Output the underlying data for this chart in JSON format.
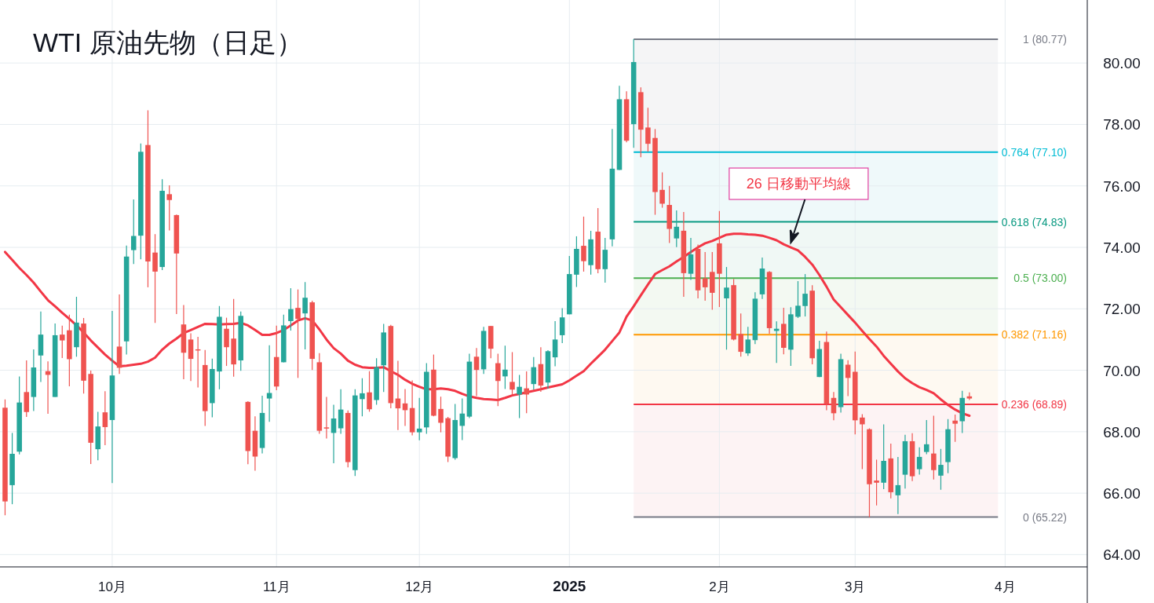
{
  "chart_data": {
    "type": "candlestick",
    "title": "WTI 原油先物（日足）",
    "categories": [
      null,
      null,
      null,
      null,
      null,
      null,
      null,
      null,
      null,
      null,
      null,
      null,
      null,
      null,
      null,
      "10月",
      null,
      null,
      null,
      null,
      null,
      null,
      null,
      null,
      null,
      null,
      null,
      null,
      null,
      null,
      null,
      null,
      null,
      null,
      null,
      null,
      null,
      null,
      "11月",
      null,
      null,
      null,
      null,
      null,
      null,
      null,
      null,
      null,
      null,
      null,
      null,
      null,
      null,
      null,
      null,
      null,
      null,
      null,
      "12月",
      null,
      null,
      null,
      null,
      null,
      null,
      null,
      null,
      null,
      null,
      null,
      null,
      null,
      null,
      null,
      null,
      null,
      null,
      null,
      null,
      "2025",
      null,
      null,
      null,
      null,
      null,
      null,
      null,
      null,
      null,
      null,
      null,
      null,
      null,
      null,
      null,
      null,
      null,
      null,
      null,
      null,
      "2月",
      null,
      null,
      null,
      null,
      null,
      null,
      null,
      null,
      null,
      null,
      null,
      null,
      null,
      null,
      null,
      null,
      null,
      null,
      "3月",
      null,
      null,
      null,
      null,
      null,
      null,
      null,
      null,
      null,
      null,
      null,
      null,
      null,
      null,
      null,
      null,
      null,
      null,
      null,
      null,
      "4月",
      null,
      null,
      null,
      null,
      null,
      null,
      null,
      null,
      null,
      null,
      null
    ],
    "ylim": [
      63.6,
      82.05
    ],
    "yticks": [
      {
        "value": 64,
        "label": "64.00"
      },
      {
        "value": 66,
        "label": "66.00"
      },
      {
        "value": 68,
        "label": "68.00"
      },
      {
        "value": 70,
        "label": "70.00"
      },
      {
        "value": 72,
        "label": "72.00"
      },
      {
        "value": 74,
        "label": "74.00"
      },
      {
        "value": 76,
        "label": "76.00"
      },
      {
        "value": 78,
        "label": "78.00"
      },
      {
        "value": 80,
        "label": "80.00"
      }
    ],
    "grid": true,
    "series": [
      {
        "type": "candlestick",
        "colors": [
          "#ef5350",
          "#26a69a",
          "#26a69a",
          "#ef5350",
          "#26a69a",
          "#26a69a",
          "#ef5350",
          "#26a69a",
          "#ef5350",
          "#ef5350",
          "#26a69a",
          "#ef5350",
          "#ef5350",
          "#26a69a",
          "#ef5350",
          "#26a69a",
          "#ef5350",
          "#26a69a",
          "#26a69a",
          "#26a69a",
          "#ef5350",
          "#ef5350",
          "#26a69a",
          "#ef5350",
          "#ef5350",
          "#ef5350",
          "#ef5350",
          "#ef5350",
          "#ef5350",
          "#26a69a",
          "#26a69a",
          "#ef5350",
          "#ef5350",
          "#26a69a",
          "#ef5350",
          "#ef5350",
          "#26a69a",
          "#26a69a",
          "#ef5350",
          "#26a69a",
          "#26a69a",
          "#ef5350",
          "#26a69a",
          "#ef5350",
          "#ef5350",
          "#ef5350",
          "#26a69a",
          "#26a69a",
          "#ef5350",
          "#26a69a",
          "#26a69a",
          "#ef5350",
          "#26a69a",
          "#26a69a",
          "#ef5350",
          "#ef5350",
          "#ef5350",
          "#ef5350",
          "#26a69a",
          "#26a69a",
          "#ef5350",
          "#ef5350",
          "#ef5350",
          "#26a69a",
          "#26a69a",
          "#26a69a",
          "#ef5350",
          "#26a69a",
          "#ef5350",
          "#ef5350",
          "#26a69a",
          "#ef5350",
          "#26a69a",
          "#ef5350",
          "#26a69a",
          "#ef5350",
          "#26a69a",
          "#26a69a",
          "#26a69a",
          "#26a69a",
          "#26a69a",
          "#ef5350",
          "#26a69a",
          "#ef5350",
          "#26a69a",
          "#26a69a",
          "#26a69a",
          "#ef5350",
          "#26a69a",
          "#ef5350",
          "#ef5350",
          "#ef5350",
          "#ef5350",
          "#ef5350",
          "#26a69a",
          "#ef5350",
          "#26a69a",
          "#ef5350",
          "#ef5350",
          "#ef5350",
          "#ef5350",
          "#26a69a",
          "#ef5350",
          "#ef5350",
          "#26a69a",
          "#26a69a",
          "#26a69a",
          "#ef5350",
          "#26a69a",
          "#ef5350",
          "#26a69a",
          "#26a69a",
          "#26a69a",
          "#ef5350",
          "#26a69a",
          "#ef5350",
          "#ef5350",
          "#26a69a",
          "#ef5350",
          "#ef5350",
          "#ef5350",
          "#ef5350",
          "#ef5350",
          "#26a69a",
          "#ef5350",
          "#26a69a",
          "#26a69a",
          "#ef5350",
          "#26a69a",
          "#26a69a",
          "#ef5350",
          "#26a69a",
          "#26a69a",
          "#ef5350",
          "#26a69a",
          "#ef5350",
          null,
          null,
          null,
          null,
          null,
          null,
          null,
          null,
          null,
          null,
          null,
          null,
          null,
          null,
          null,
          null
        ],
        "ohlc": [
          [
            68.78,
            69.05,
            65.28,
            65.73
          ],
          [
            66.26,
            67.96,
            65.64,
            67.28
          ],
          [
            67.35,
            69.8,
            67.26,
            68.95
          ],
          [
            69.29,
            70.32,
            68.48,
            68.64
          ],
          [
            69.13,
            70.68,
            68.67,
            70.09
          ],
          [
            70.48,
            71.91,
            69.62,
            71.16
          ],
          [
            69.97,
            70.29,
            68.58,
            69.85
          ],
          [
            69.13,
            71.52,
            69.13,
            71.14
          ],
          [
            71.16,
            71.45,
            70.4,
            70.97
          ],
          [
            71.3,
            71.81,
            69.48,
            70.36
          ],
          [
            70.75,
            72.39,
            70.44,
            71.55
          ],
          [
            71.52,
            71.7,
            69.24,
            69.66
          ],
          [
            69.88,
            69.99,
            66.95,
            67.64
          ],
          [
            67.43,
            68.65,
            67.07,
            68.17
          ],
          [
            68.63,
            69.32,
            67.56,
            68.15
          ],
          [
            68.38,
            71.93,
            66.33,
            69.83
          ],
          [
            70.77,
            72.47,
            69.88,
            70.08
          ],
          [
            70.94,
            74.06,
            70.51,
            73.7
          ],
          [
            73.91,
            75.56,
            73.46,
            74.37
          ],
          [
            74.38,
            77.38,
            73.61,
            77.11
          ],
          [
            77.33,
            78.46,
            72.7,
            73.54
          ],
          [
            73.83,
            74.43,
            71.54,
            73.21
          ],
          [
            73.36,
            76.22,
            73.26,
            75.84
          ],
          [
            75.73,
            76.02,
            74.55,
            75.54
          ],
          [
            75.05,
            75.07,
            71.83,
            73.8
          ],
          [
            71.49,
            72.12,
            69.71,
            70.57
          ],
          [
            71.0,
            71.2,
            69.65,
            70.37
          ],
          [
            70.68,
            71.09,
            69.44,
            70.67
          ],
          [
            70.17,
            70.66,
            68.19,
            68.67
          ],
          [
            68.93,
            70.38,
            68.47,
            70.04
          ],
          [
            69.96,
            72.09,
            69.38,
            71.74
          ],
          [
            71.35,
            71.71,
            70.14,
            70.75
          ],
          [
            71.03,
            72.32,
            69.79,
            70.19
          ],
          [
            70.32,
            71.91,
            69.98,
            71.77
          ],
          [
            68.97,
            68.99,
            66.94,
            67.37
          ],
          [
            68.03,
            68.5,
            66.73,
            67.19
          ],
          [
            67.47,
            69.17,
            67.29,
            68.61
          ],
          [
            69.08,
            70.81,
            68.32,
            69.26
          ],
          [
            70.43,
            71.45,
            69.35,
            69.47
          ],
          [
            70.26,
            71.81,
            70.26,
            71.46
          ],
          [
            71.6,
            72.67,
            71.29,
            71.99
          ],
          [
            72.03,
            72.63,
            69.75,
            71.67
          ],
          [
            71.85,
            72.87,
            70.68,
            72.36
          ],
          [
            72.21,
            72.26,
            70.01,
            70.37
          ],
          [
            70.26,
            70.56,
            67.93,
            68.03
          ],
          [
            68.14,
            69.13,
            67.78,
            68.12
          ],
          [
            67.96,
            68.88,
            66.97,
            68.43
          ],
          [
            68.11,
            69.38,
            67.93,
            68.72
          ],
          [
            68.61,
            68.69,
            66.84,
            67.01
          ],
          [
            66.75,
            69.38,
            66.56,
            69.18
          ],
          [
            69.06,
            69.74,
            68.5,
            69.25
          ],
          [
            69.28,
            69.97,
            68.65,
            68.73
          ],
          [
            69.03,
            70.39,
            68.88,
            70.1
          ],
          [
            70.16,
            71.51,
            69.29,
            71.23
          ],
          [
            71.44,
            71.48,
            68.76,
            68.93
          ],
          [
            69.08,
            70.31,
            68.05,
            68.76
          ],
          [
            68.92,
            69.39,
            68.19,
            68.7
          ],
          [
            68.77,
            69.67,
            67.88,
            67.98
          ],
          [
            67.98,
            69.1,
            67.72,
            68.1
          ],
          [
            68.14,
            70.23,
            67.93,
            69.95
          ],
          [
            70.02,
            70.51,
            68.5,
            68.52
          ],
          [
            68.74,
            69.14,
            67.98,
            68.29
          ],
          [
            68.44,
            68.48,
            67.01,
            67.19
          ],
          [
            67.14,
            68.9,
            67.09,
            68.38
          ],
          [
            68.19,
            69.08,
            67.73,
            68.59
          ],
          [
            68.49,
            70.54,
            68.44,
            70.28
          ],
          [
            70.44,
            70.72,
            69.16,
            70.01
          ],
          [
            70.03,
            71.41,
            69.88,
            71.28
          ],
          [
            71.44,
            71.44,
            70.39,
            70.7
          ],
          [
            70.23,
            70.54,
            68.83,
            69.65
          ],
          [
            69.8,
            70.8,
            69.39,
            70.02
          ],
          [
            69.62,
            70.59,
            69.19,
            69.37
          ],
          [
            69.21,
            69.85,
            68.44,
            69.46
          ],
          [
            69.41,
            69.96,
            68.6,
            69.21
          ],
          [
            69.55,
            70.43,
            69.37,
            70.1
          ],
          [
            70.2,
            70.75,
            69.3,
            69.5
          ],
          [
            69.6,
            70.65,
            69.4,
            70.62
          ],
          [
            70.42,
            71.6,
            70.13,
            71.0
          ],
          [
            71.14,
            72.02,
            70.88,
            71.72
          ],
          [
            71.82,
            73.72,
            71.82,
            73.13
          ],
          [
            73.11,
            74.36,
            72.71,
            73.95
          ],
          [
            74.05,
            75.0,
            73.21,
            73.55
          ],
          [
            73.42,
            74.54,
            73.11,
            74.26
          ],
          [
            74.51,
            75.28,
            73.16,
            73.29
          ],
          [
            73.29,
            74.31,
            72.85,
            73.92
          ],
          [
            74.26,
            77.85,
            74.03,
            76.56
          ],
          [
            76.52,
            79.26,
            76.52,
            78.82
          ],
          [
            78.82,
            79.08,
            77.42,
            77.47
          ],
          [
            78.01,
            80.77,
            77.24,
            80.03
          ],
          [
            79.05,
            79.21,
            76.93,
            77.83
          ],
          [
            77.9,
            78.54,
            77.11,
            77.37
          ],
          [
            77.56,
            77.85,
            75.06,
            75.8
          ],
          [
            75.87,
            76.44,
            75.29,
            75.42
          ],
          [
            75.38,
            76.0,
            74.14,
            74.6
          ],
          [
            74.29,
            75.2,
            74.01,
            74.67
          ],
          [
            74.54,
            75.15,
            72.39,
            73.16
          ],
          [
            73.14,
            74.31,
            72.94,
            73.77
          ],
          [
            73.95,
            74.09,
            72.34,
            72.6
          ],
          [
            72.99,
            73.85,
            72.26,
            72.7
          ],
          [
            73.2,
            73.85,
            71.97,
            72.52
          ],
          [
            74.13,
            75.18,
            72.06,
            73.14
          ],
          [
            72.34,
            73.36,
            70.67,
            72.69
          ],
          [
            72.77,
            72.97,
            70.97,
            71.0
          ],
          [
            71.18,
            71.85,
            70.44,
            70.6
          ],
          [
            70.55,
            71.41,
            70.47,
            71.0
          ],
          [
            70.98,
            72.54,
            70.85,
            72.33
          ],
          [
            72.47,
            73.67,
            72.32,
            73.31
          ],
          [
            73.2,
            73.23,
            71.19,
            71.37
          ],
          [
            71.28,
            71.59,
            70.24,
            71.35
          ],
          [
            71.51,
            72.03,
            70.52,
            70.73
          ],
          [
            70.67,
            72.05,
            70.14,
            71.82
          ],
          [
            71.74,
            72.9,
            71.7,
            72.1
          ],
          [
            72.09,
            73.13,
            71.75,
            72.49
          ],
          [
            72.59,
            72.77,
            70.19,
            70.39
          ],
          [
            69.78,
            70.96,
            69.78,
            70.69
          ],
          [
            70.92,
            71.26,
            68.7,
            68.91
          ],
          [
            69.1,
            69.29,
            68.37,
            68.6
          ],
          [
            68.8,
            70.54,
            68.62,
            70.36
          ],
          [
            70.18,
            70.33,
            69.16,
            69.75
          ],
          [
            69.95,
            70.61,
            67.91,
            68.37
          ],
          [
            68.46,
            68.57,
            66.78,
            68.24
          ],
          [
            68.08,
            68.11,
            65.22,
            66.29
          ],
          [
            66.41,
            67.09,
            65.6,
            66.34
          ],
          [
            66.34,
            68.24,
            66.13,
            67.05
          ],
          [
            67.13,
            67.61,
            65.83,
            66.03
          ],
          [
            65.93,
            67.18,
            65.32,
            66.26
          ],
          [
            66.6,
            67.9,
            66.15,
            67.69
          ],
          [
            67.69,
            67.95,
            66.39,
            66.55
          ],
          [
            66.78,
            67.49,
            66.6,
            67.18
          ],
          [
            67.34,
            68.38,
            67.27,
            67.59
          ],
          [
            67.29,
            68.52,
            66.44,
            66.75
          ],
          [
            66.57,
            67.44,
            66.11,
            66.92
          ],
          [
            67.01,
            68.41,
            66.65,
            68.08
          ],
          [
            68.36,
            68.56,
            67.67,
            68.26
          ],
          [
            68.34,
            69.33,
            67.96,
            69.1
          ],
          [
            69.15,
            69.28,
            69.03,
            69.08
          ],
          null,
          null,
          null,
          null,
          null,
          null,
          null,
          null,
          null,
          null,
          null,
          null,
          null,
          null,
          null,
          null
        ]
      },
      {
        "type": "line",
        "name": "26 日移動平均線",
        "color": "#f23645",
        "values": [
          73.85,
          73.59,
          73.33,
          73.1,
          72.85,
          72.56,
          72.28,
          72.08,
          71.87,
          71.67,
          71.46,
          71.23,
          70.97,
          70.74,
          70.51,
          70.31,
          70.13,
          70.15,
          70.18,
          70.21,
          70.28,
          70.41,
          70.67,
          70.87,
          71.03,
          71.21,
          71.31,
          71.41,
          71.51,
          71.5,
          71.49,
          71.5,
          71.51,
          71.54,
          71.46,
          71.31,
          71.15,
          71.15,
          71.21,
          71.31,
          71.46,
          71.62,
          71.69,
          71.62,
          71.33,
          71.0,
          70.72,
          70.54,
          70.31,
          70.18,
          70.1,
          70.08,
          70.08,
          70.1,
          69.97,
          69.85,
          69.69,
          69.56,
          69.46,
          69.38,
          69.38,
          69.41,
          69.38,
          69.33,
          69.23,
          69.15,
          69.1,
          69.06,
          69.05,
          69.03,
          69.1,
          69.18,
          69.23,
          69.28,
          69.33,
          69.38,
          69.44,
          69.49,
          69.54,
          69.67,
          69.82,
          69.97,
          70.21,
          70.44,
          70.67,
          70.95,
          71.23,
          71.74,
          72.08,
          72.44,
          72.79,
          73.13,
          73.26,
          73.38,
          73.54,
          73.69,
          73.85,
          74.0,
          74.13,
          74.21,
          74.31,
          74.41,
          74.44,
          74.44,
          74.42,
          74.41,
          74.38,
          74.31,
          74.23,
          74.1,
          74.0,
          73.9,
          73.69,
          73.44,
          73.1,
          72.72,
          72.3,
          72.05,
          71.8,
          71.55,
          71.28,
          71.02,
          70.77,
          70.47,
          70.21,
          69.96,
          69.74,
          69.58,
          69.45,
          69.36,
          69.25,
          69.05,
          68.87,
          68.72,
          68.6,
          68.52,
          null,
          null,
          null,
          null,
          null,
          null,
          null,
          null,
          null,
          null,
          null,
          null,
          null,
          null,
          null,
          null
        ]
      }
    ],
    "ref_lines": [
      {
        "axis": "y",
        "value": 80.77,
        "label": "1 (80.77)",
        "color": "#787b86"
      },
      {
        "axis": "y",
        "value": 77.1,
        "label": "0.764 (77.10)",
        "color": "#00bcd4"
      },
      {
        "axis": "y",
        "value": 74.83,
        "label": "0.618 (74.83)",
        "color": "#089981"
      },
      {
        "axis": "y",
        "value": 73.0,
        "label": "0.5 (73.00)",
        "color": "#4caf50"
      },
      {
        "axis": "y",
        "value": 71.16,
        "label": "0.382 (71.16)",
        "color": "#ff9800"
      },
      {
        "axis": "y",
        "value": 68.89,
        "label": "0.236 (68.89)",
        "color": "#f23645"
      },
      {
        "axis": "y",
        "value": 65.22,
        "label": "0 (65.22)",
        "color": "#787b86"
      }
    ],
    "bands": [
      {
        "axis": "y",
        "from": 77.1,
        "to": 80.77,
        "color": "#f5f5f6"
      },
      {
        "axis": "y",
        "from": 74.83,
        "to": 77.1,
        "color": "#eff9fa"
      },
      {
        "axis": "y",
        "from": 73.0,
        "to": 74.83,
        "color": "#f0f8f5"
      },
      {
        "axis": "y",
        "from": 71.16,
        "to": 73.0,
        "color": "#f3f9f2"
      },
      {
        "axis": "y",
        "from": 68.89,
        "to": 71.16,
        "color": "#fef9f1"
      },
      {
        "axis": "y",
        "from": 65.22,
        "to": 68.89,
        "color": "#fdf3f4"
      }
    ]
  }
}
